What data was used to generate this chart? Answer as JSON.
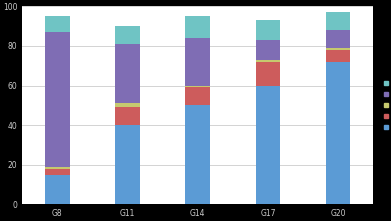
{
  "categories": [
    "G8",
    "G11",
    "G14",
    "G17",
    "G20"
  ],
  "stacked_data": {
    "blue": [
      15,
      40,
      50,
      60,
      72
    ],
    "red": [
      3,
      9,
      9,
      12,
      6
    ],
    "yellow": [
      1,
      2,
      1,
      1,
      1
    ],
    "purple": [
      68,
      30,
      24,
      10,
      9
    ],
    "cyan": [
      8,
      9,
      11,
      10,
      9
    ]
  },
  "color_map": {
    "blue": "#5b9bd5",
    "red": "#cd5c5c",
    "yellow": "#c6c96e",
    "purple": "#7f6db4",
    "cyan": "#6fc4c4"
  },
  "legend_colors": [
    "#6fc4c4",
    "#7f6db4",
    "#c6c96e",
    "#cd5c5c",
    "#5b9bd5"
  ],
  "plot_order": [
    "blue",
    "red",
    "yellow",
    "purple",
    "cyan"
  ],
  "ylim": [
    0,
    100
  ],
  "yticks": [
    0,
    20,
    40,
    60,
    80,
    100
  ],
  "bar_width": 0.35,
  "figsize": [
    3.91,
    2.21
  ],
  "dpi": 100,
  "plot_bg": "#ffffff",
  "fig_bg": "#000000",
  "grid_color": "#cccccc",
  "tick_color": "#cccccc",
  "spine_color": "#888888"
}
